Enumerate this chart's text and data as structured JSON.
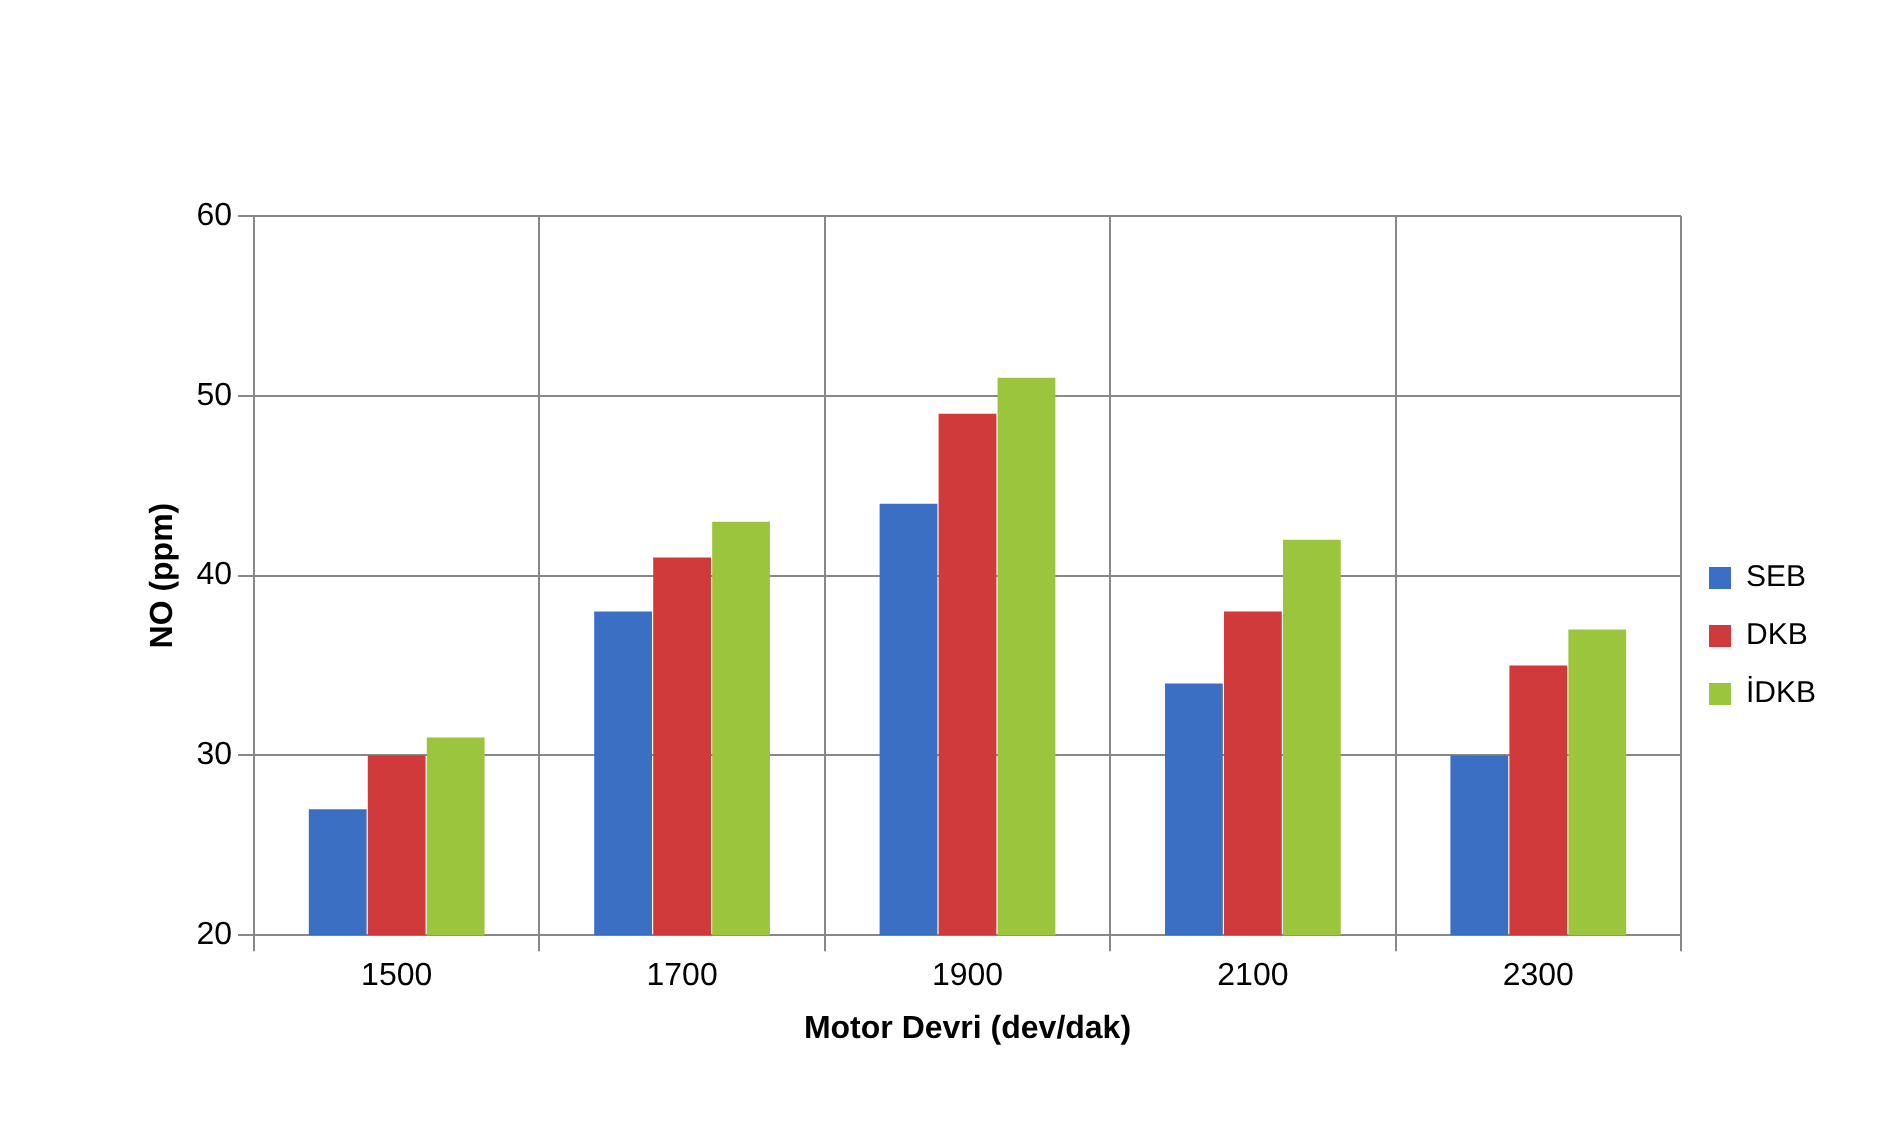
{
  "chart_data": {
    "type": "bar",
    "xlabel": "Motor Devri (dev/dak)",
    "ylabel": "NO (ppm)",
    "categories": [
      "1500",
      "1700",
      "1900",
      "2100",
      "2300"
    ],
    "series": [
      {
        "name": "SEB",
        "color": "#3a6fc4",
        "values": [
          27,
          38,
          44,
          34,
          30
        ]
      },
      {
        "name": "DKB",
        "color": "#d03a3a",
        "values": [
          30,
          41,
          49,
          38,
          35
        ]
      },
      {
        "name": "İDKB",
        "color": "#9bc53d",
        "values": [
          31,
          43,
          51,
          42,
          37
        ]
      }
    ],
    "ylim": [
      20,
      60
    ],
    "yticks": [
      20,
      30,
      40,
      50,
      60
    ],
    "grid": true,
    "legend": "right"
  }
}
